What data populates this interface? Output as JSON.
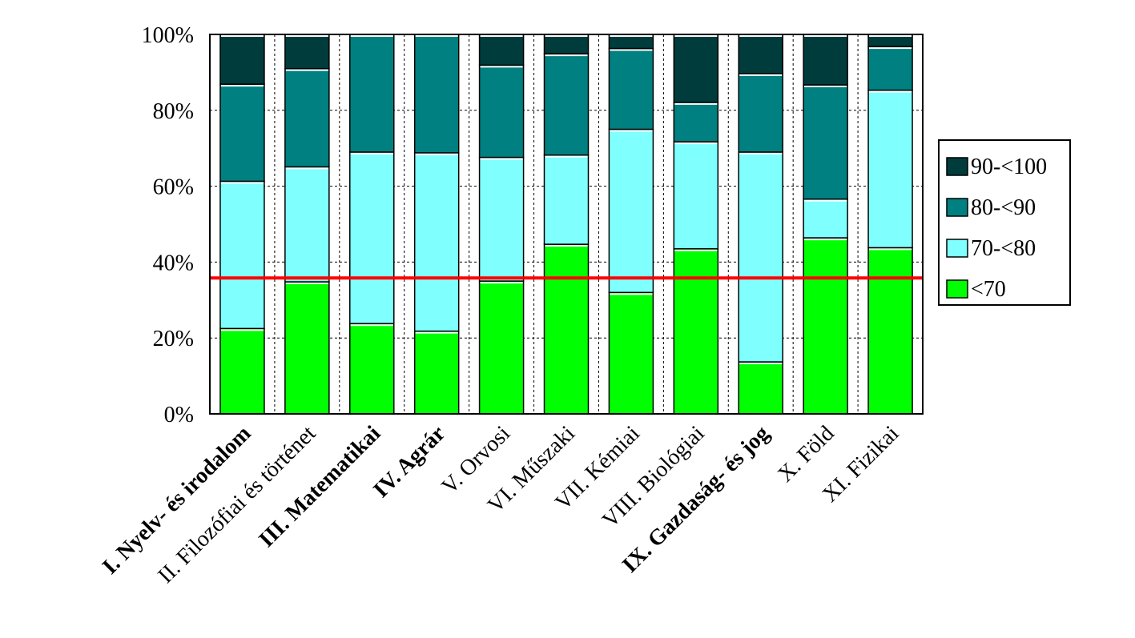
{
  "chart_data": {
    "type": "bar",
    "stacked": true,
    "title": "",
    "xlabel": "",
    "ylabel": "",
    "ylim": [
      0,
      100
    ],
    "y_tick_labels": [
      "0%",
      "20%",
      "40%",
      "60%",
      "80%",
      "100%"
    ],
    "grid": true,
    "legend_position": "right",
    "categories": [
      "I. Nyelv- és irodalom",
      "II. Filozófiai és történet",
      "III. Matematikai",
      "IV. Agrár",
      "V. Orvosi",
      "VI. Műszaki",
      "VII. Kémiai",
      "VIII. Biológiai",
      "IX. Gazdaság- és jog",
      "X. Föld",
      "XI. Fizikai"
    ],
    "bold_categories": [
      0,
      2,
      3,
      8
    ],
    "series": [
      {
        "name": "<70",
        "color": "#00ff00",
        "values": [
          22.5,
          34.8,
          23.8,
          21.8,
          35.0,
          44.7,
          32.0,
          43.5,
          13.7,
          46.4,
          43.8
        ]
      },
      {
        "name": "70-<80",
        "color": "#80ffff",
        "values": [
          38.8,
          30.3,
          45.2,
          47.0,
          32.6,
          23.5,
          43.0,
          28.2,
          55.3,
          10.2,
          41.5
        ]
      },
      {
        "name": "80-<90",
        "color": "#008080",
        "values": [
          25.6,
          25.9,
          31.0,
          31.2,
          24.3,
          26.7,
          21.3,
          10.4,
          20.7,
          30.1,
          11.5
        ]
      },
      {
        "name": "90-<100",
        "color": "#003c3c",
        "values": [
          13.1,
          9.0,
          0.0,
          0.0,
          8.1,
          5.1,
          3.7,
          17.9,
          10.3,
          13.3,
          3.2
        ]
      }
    ],
    "reference_line": {
      "value": 35.8,
      "color": "#ff0000"
    }
  }
}
